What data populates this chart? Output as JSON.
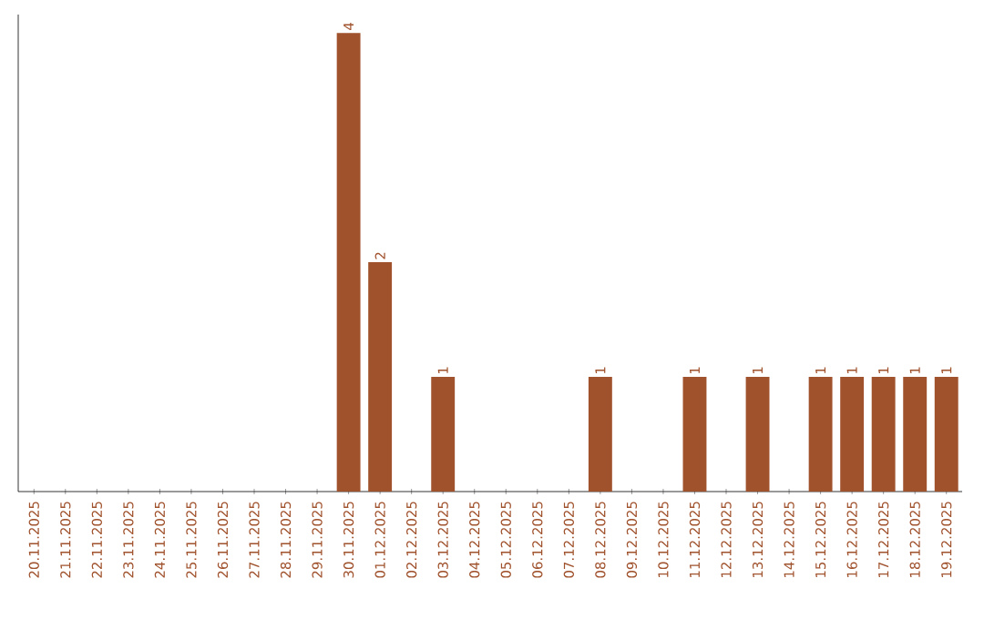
{
  "chart_data": {
    "type": "bar",
    "color": "#a0522d",
    "categories": [
      "20.11.2025",
      "21.11.2025",
      "22.11.2025",
      "23.11.2025",
      "24.11.2025",
      "25.11.2025",
      "26.11.2025",
      "27.11.2025",
      "28.11.2025",
      "29.11.2025",
      "30.11.2025",
      "01.12.2025",
      "02.12.2025",
      "03.12.2025",
      "04.12.2025",
      "05.12.2025",
      "06.12.2025",
      "07.12.2025",
      "08.12.2025",
      "09.12.2025",
      "10.12.2025",
      "11.12.2025",
      "12.12.2025",
      "13.12.2025",
      "14.12.2025",
      "15.12.2025",
      "16.12.2025",
      "17.12.2025",
      "18.12.2025",
      "19.12.2025"
    ],
    "values": [
      0,
      0,
      0,
      0,
      0,
      0,
      0,
      0,
      0,
      0,
      4,
      2,
      0,
      1,
      0,
      0,
      0,
      0,
      1,
      0,
      0,
      1,
      0,
      1,
      0,
      1,
      1,
      1,
      1,
      1
    ],
    "value_labels": [
      null,
      null,
      null,
      null,
      null,
      null,
      null,
      null,
      null,
      null,
      "4",
      "2",
      null,
      "1",
      null,
      null,
      null,
      null,
      "1",
      null,
      null,
      "1",
      null,
      "1",
      null,
      "1",
      "1",
      "1",
      "1",
      "1"
    ],
    "data_labels": false
  }
}
